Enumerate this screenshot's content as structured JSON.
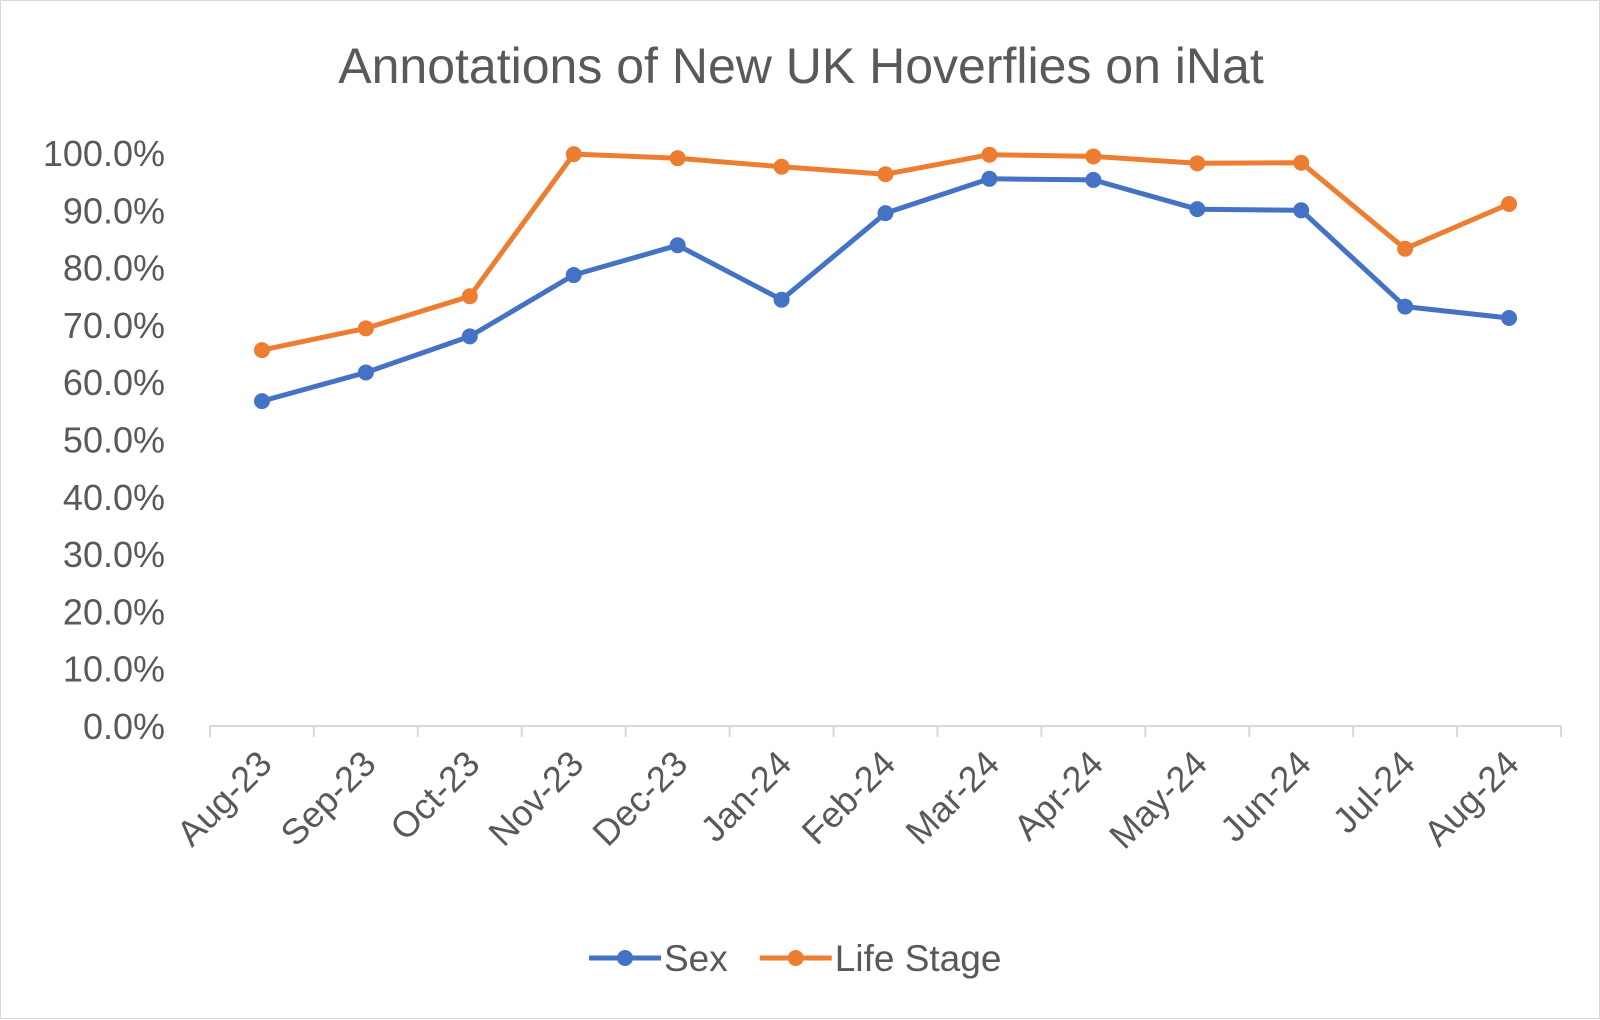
{
  "chart_data": {
    "type": "line",
    "title": "Annotations of New UK Hoverflies on iNat",
    "xlabel": "",
    "ylabel": "",
    "categories": [
      "Aug-23",
      "Sep-23",
      "Oct-23",
      "Nov-23",
      "Dec-23",
      "Jan-24",
      "Feb-24",
      "Mar-24",
      "Apr-24",
      "May-24",
      "Jun-24",
      "Jul-24",
      "Aug-24"
    ],
    "series": [
      {
        "name": "Sex",
        "color": "#4472C4",
        "values": [
          0.567,
          0.617,
          0.68,
          0.787,
          0.839,
          0.744,
          0.895,
          0.955,
          0.953,
          0.902,
          0.9,
          0.732,
          0.712
        ]
      },
      {
        "name": "Life Stage",
        "color": "#ED7D31",
        "values": [
          0.656,
          0.694,
          0.75,
          0.998,
          0.991,
          0.976,
          0.963,
          0.997,
          0.994,
          0.982,
          0.983,
          0.833,
          0.911
        ]
      }
    ],
    "ylim": [
      0,
      1
    ],
    "yticks": [
      "0.0%",
      "10.0%",
      "20.0%",
      "30.0%",
      "40.0%",
      "50.0%",
      "60.0%",
      "70.0%",
      "80.0%",
      "90.0%",
      "100.0%"
    ],
    "grid": false,
    "legend_position": "bottom",
    "axis_color": "#d9d9d9",
    "text_color": "#595959"
  }
}
